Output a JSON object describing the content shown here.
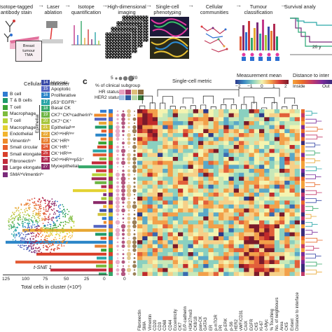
{
  "pipeline": {
    "steps": [
      {
        "label": "Isotope-tagged\nantibody stain"
      },
      {
        "label": "Laser\nablation"
      },
      {
        "label": "Isotope\nquantification"
      },
      {
        "label": "High-dimensional\nimaging"
      },
      {
        "label": "Single-cell\nphenotyping"
      },
      {
        "label": "Cellular\ncommunities"
      },
      {
        "label": "Tumour\nclassification"
      },
      {
        "label": "Survival analy"
      }
    ],
    "tma_label": "Breast\ntumour\nTMA",
    "survival_axis": "20 y"
  },
  "panel_c": {
    "letter": "c",
    "single_cell_metric": "Single-cell metric",
    "measurement_title": "Measurement mean",
    "measurement_ticks": [
      "−2",
      "−1",
      "0",
      "1",
      "2"
    ],
    "distance_title": "Distance to inter",
    "distance_ends": [
      "Inside",
      "Out"
    ],
    "bubble_ticks": [
      "5",
      "20"
    ],
    "bubble_label": "% of clinical subgroup",
    "hr_status": "HR status",
    "her2_status": "HER2 status",
    "tsne_label": "t-SNE 1",
    "xaxis_title": "Total cells in cluster (×10³)",
    "xaxis_ticks": [
      "125",
      "100",
      "75",
      "50",
      "25",
      "0"
    ],
    "zero_label": "0",
    "metacluster_title": "Cellular metacluster",
    "epithelial_label": "Epithelial",
    "stromal": [
      {
        "label": "B cell",
        "color": "#2f7bd1"
      },
      {
        "label": "T & B cells",
        "color": "#1f9a6a"
      },
      {
        "label": "T cell",
        "color": "#3aa335"
      },
      {
        "label": "Macrophage",
        "color": "#7dbb3c"
      },
      {
        "label": "T cell",
        "color": "#b7d337"
      },
      {
        "label": "Macrophage",
        "color": "#e3d232"
      },
      {
        "label": "Endothelial",
        "color": "#f2b42e"
      },
      {
        "label": "Vimentinʰᶦ",
        "color": "#ef8a2a"
      },
      {
        "label": "Small circular",
        "color": "#e85f2b"
      },
      {
        "label": "Small elongated",
        "color": "#d9402b"
      },
      {
        "label": "Fibronectinʰᶦ",
        "color": "#c22a3a"
      },
      {
        "label": "Large elongated",
        "color": "#a12b58"
      },
      {
        "label": "SMAʰᶦVimentinʰᶦ",
        "color": "#7a2b7a"
      }
    ],
    "epithelial": [
      {
        "num": "14",
        "label": "Hypoxic",
        "color": "#3a4ba8"
      },
      {
        "num": "15",
        "label": "Apoptotic",
        "color": "#5566c2"
      },
      {
        "num": "16",
        "label": "Proliferative",
        "color": "#2c86c8"
      },
      {
        "num": "17",
        "label": "p53⁺EGFR⁺",
        "color": "#2aa6a8"
      },
      {
        "num": "18",
        "label": "Basal CK",
        "color": "#36a86a"
      },
      {
        "num": "19",
        "label": "CK7⁺CKʰᶦcadherinʰᶦ",
        "color": "#6db544"
      },
      {
        "num": "20",
        "label": "CK7⁺CK⁺",
        "color": "#a6c63a"
      },
      {
        "num": "21",
        "label": "Epithelialˡᵒʷ",
        "color": "#cfc23a"
      },
      {
        "num": "22",
        "label": "CKˡᵒʷHRˡᵒʷ",
        "color": "#e8a733"
      },
      {
        "num": "23",
        "label": "CK⁺HRʰᶦ",
        "color": "#e98032"
      },
      {
        "num": "24",
        "label": "CK⁺HR⁺",
        "color": "#e25a34"
      },
      {
        "num": "25",
        "label": "CK⁺HRˡᵒʷ",
        "color": "#cf3a3c"
      },
      {
        "num": "26",
        "label": "CKˡᵒʷHRˡᵒʷp53⁺",
        "color": "#b12a52"
      },
      {
        "num": "27",
        "label": "Myoepithelial",
        "color": "#8a2a6a"
      }
    ],
    "markers": [
      "Fibronectin",
      "SMA",
      "Vimentin",
      "CD20",
      "CD3",
      "CD68",
      "CD44",
      "Eccentricity",
      "CK7",
      "E/P-cadherin",
      "H3K27me3",
      "CK8/18",
      "pan-CK",
      "GATA3",
      "ER",
      "p-mTOR",
      "PR",
      "p-ERK",
      "p-S6",
      "HER2",
      "vWF/CD31",
      "CAIX",
      "EGFR",
      "CK5",
      "Ki-67",
      "c-Myc",
      "% Touching",
      "No. of neighbours",
      "Area",
      "CK5",
      "Extent",
      "Distance to interface"
    ]
  }
}
